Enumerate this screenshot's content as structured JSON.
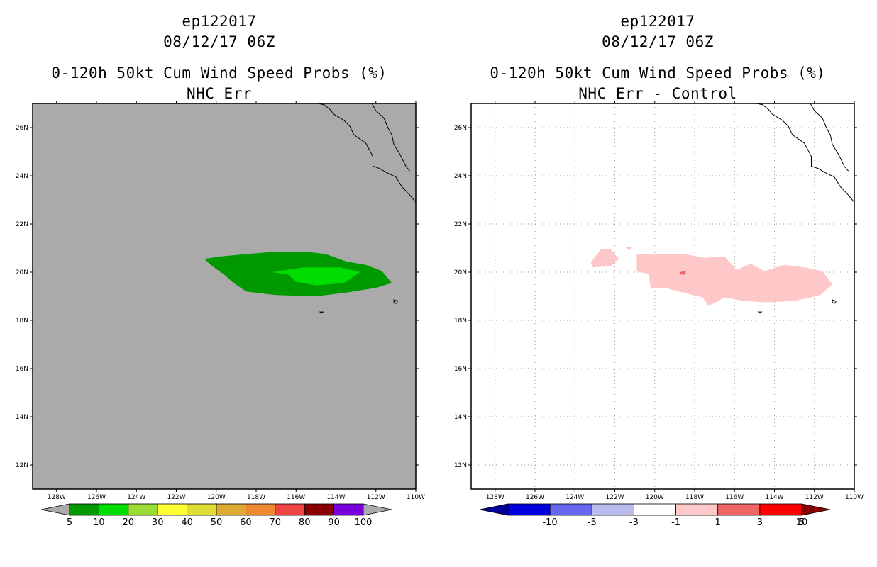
{
  "panels": [
    {
      "id": "nhc-err",
      "title_storm": "ep122017",
      "title_time": "08/12/17 06Z",
      "title_product": "0-120h 50kt Cum Wind Speed Probs (%)",
      "title_sub": "NHC Err",
      "background_color": "#aaaaaa"
    },
    {
      "id": "nhc-err-minus-control",
      "title_storm": "ep122017",
      "title_time": "08/12/17 06Z",
      "title_product": "0-120h 50kt Cum Wind Speed Probs (%)",
      "title_sub": "NHC Err - Control",
      "background_color": "#ffffff"
    }
  ],
  "chart_data": [
    {
      "type": "heatmap",
      "title": "0-120h 50kt Cum Wind Speed Probs (%) NHC Err",
      "x_ticks": [
        "128W",
        "126W",
        "124W",
        "122W",
        "120W",
        "118W",
        "116W",
        "114W",
        "112W",
        "110W"
      ],
      "y_ticks": [
        "12N",
        "14N",
        "16N",
        "18N",
        "20N",
        "22N",
        "24N",
        "26N"
      ],
      "xlim_lon": [
        -129.2,
        -110
      ],
      "ylim_lat": [
        11,
        27
      ],
      "colorbar": {
        "labels": [
          "5",
          "10",
          "20",
          "30",
          "40",
          "50",
          "60",
          "70",
          "80",
          "90",
          "100"
        ],
        "colors": [
          "#009900",
          "#00dd00",
          "#99dd33",
          "#ffff33",
          "#dddd33",
          "#ddaa33",
          "#ee8833",
          "#ee4444",
          "#880000",
          "#7700dd"
        ],
        "end_colors": [
          "#aaaaaa",
          "#aaaaaa"
        ]
      },
      "contours": [
        {
          "level": "5-10",
          "color": "#009900",
          "lonlat": [
            [
              -120.6,
              20.55
            ],
            [
              -119.8,
              20.65
            ],
            [
              -118.5,
              20.75
            ],
            [
              -117.0,
              20.85
            ],
            [
              -115.5,
              20.85
            ],
            [
              -114.5,
              20.75
            ],
            [
              -113.5,
              20.45
            ],
            [
              -112.5,
              20.3
            ],
            [
              -111.7,
              20.05
            ],
            [
              -111.2,
              19.55
            ],
            [
              -112.0,
              19.35
            ],
            [
              -113.5,
              19.15
            ],
            [
              -115.0,
              19.0
            ],
            [
              -117.0,
              19.05
            ],
            [
              -118.5,
              19.2
            ],
            [
              -119.2,
              19.6
            ],
            [
              -119.6,
              19.9
            ],
            [
              -120.2,
              20.25
            ]
          ]
        },
        {
          "level": "10-20",
          "color": "#00dd00",
          "lonlat": [
            [
              -117.2,
              20.0
            ],
            [
              -115.6,
              20.2
            ],
            [
              -113.8,
              20.2
            ],
            [
              -112.8,
              20.0
            ],
            [
              -113.6,
              19.55
            ],
            [
              -115.0,
              19.45
            ],
            [
              -116.0,
              19.6
            ],
            [
              -116.4,
              19.9
            ]
          ]
        }
      ]
    },
    {
      "type": "heatmap",
      "title": "0-120h 50kt Cum Wind Speed Probs (%) NHC Err - Control",
      "x_ticks": [
        "128W",
        "126W",
        "124W",
        "122W",
        "120W",
        "118W",
        "116W",
        "114W",
        "112W",
        "110W"
      ],
      "y_ticks": [
        "12N",
        "14N",
        "16N",
        "18N",
        "20N",
        "22N",
        "24N",
        "26N"
      ],
      "xlim_lon": [
        -129.2,
        -110
      ],
      "ylim_lat": [
        11,
        27
      ],
      "grid": true,
      "colorbar": {
        "labels": [
          "-10",
          "-5",
          "-3",
          "-1",
          "1",
          "3",
          "5",
          "10"
        ],
        "colors": [
          "#0000dd",
          "#6666ee",
          "#bbbbee",
          "#ffffff",
          "#ffc8c8",
          "#ee6666",
          "#ff0000"
        ],
        "end_colors": [
          "#000099",
          "#880000"
        ]
      },
      "contours": [
        {
          "level": "1-3",
          "color": "#ffc8c8",
          "lonlat": [
            [
              -123.2,
              20.4
            ],
            [
              -122.7,
              20.95
            ],
            [
              -122.2,
              20.95
            ],
            [
              -121.8,
              20.55
            ],
            [
              -122.2,
              20.25
            ],
            [
              -123.1,
              20.2
            ]
          ]
        },
        {
          "level": "1-3",
          "color": "#ffc8c8",
          "lonlat": [
            [
              -121.5,
              21.05
            ],
            [
              -121.1,
              21.05
            ],
            [
              -121.3,
              20.9
            ]
          ]
        },
        {
          "level": "1-3",
          "color": "#ffc8c8",
          "lonlat": [
            [
              -120.9,
              20.75
            ],
            [
              -119.2,
              20.75
            ],
            [
              -118.5,
              20.75
            ],
            [
              -117.5,
              20.6
            ],
            [
              -116.5,
              20.65
            ],
            [
              -115.9,
              20.1
            ],
            [
              -115.2,
              20.35
            ],
            [
              -114.5,
              20.05
            ],
            [
              -113.5,
              20.3
            ],
            [
              -112.5,
              20.2
            ],
            [
              -111.6,
              20.05
            ],
            [
              -111.1,
              19.5
            ],
            [
              -111.7,
              19.05
            ],
            [
              -113.0,
              18.8
            ],
            [
              -114.5,
              18.75
            ],
            [
              -115.5,
              18.8
            ],
            [
              -116.5,
              18.95
            ],
            [
              -117.3,
              18.6
            ],
            [
              -117.6,
              18.95
            ],
            [
              -119.5,
              19.35
            ],
            [
              -120.2,
              19.35
            ],
            [
              -120.3,
              19.9
            ],
            [
              -120.9,
              20.05
            ]
          ]
        },
        {
          "level": "3-5",
          "color": "#ee6666",
          "lonlat": [
            [
              -118.75,
              20.0
            ],
            [
              -118.45,
              20.05
            ],
            [
              -118.45,
              19.9
            ],
            [
              -118.75,
              19.9
            ]
          ]
        }
      ]
    }
  ]
}
